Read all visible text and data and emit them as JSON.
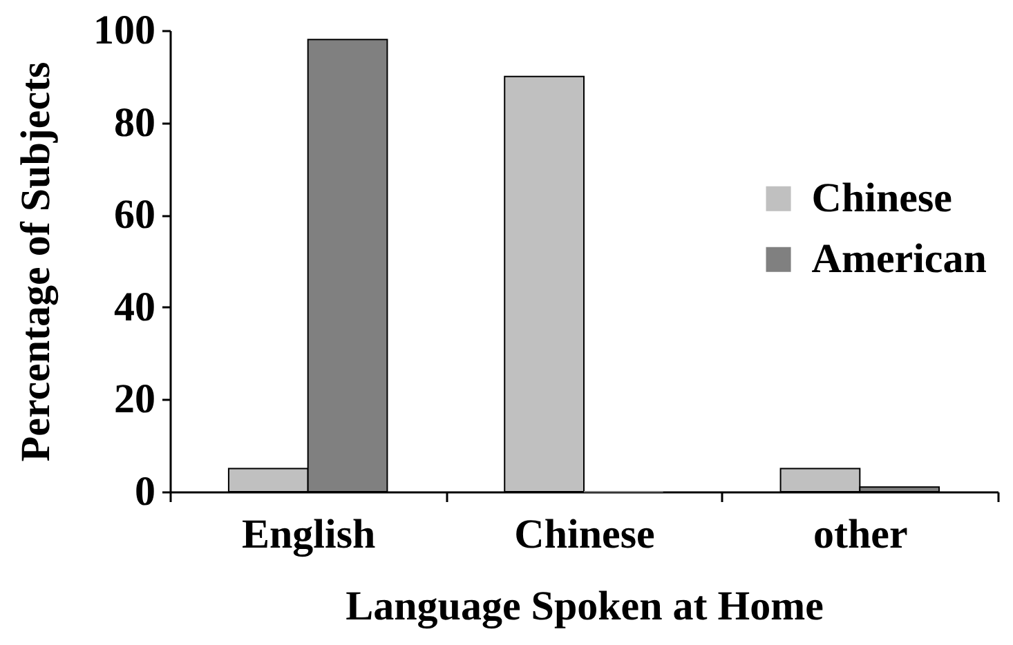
{
  "chart_data": {
    "type": "bar",
    "xlabel": "Language Spoken at Home",
    "ylabel": "Percentage of Subjects",
    "categories": [
      "English",
      "Chinese",
      "other"
    ],
    "series": [
      {
        "name": "Chinese",
        "color": "#c0c0c0",
        "values": [
          5,
          90,
          5
        ]
      },
      {
        "name": "American",
        "color": "#808080",
        "values": [
          98,
          0,
          1
        ]
      }
    ],
    "ylim": [
      0,
      100
    ],
    "yticks": [
      0,
      20,
      40,
      60,
      80,
      100
    ],
    "legend": "right",
    "grid": false
  }
}
